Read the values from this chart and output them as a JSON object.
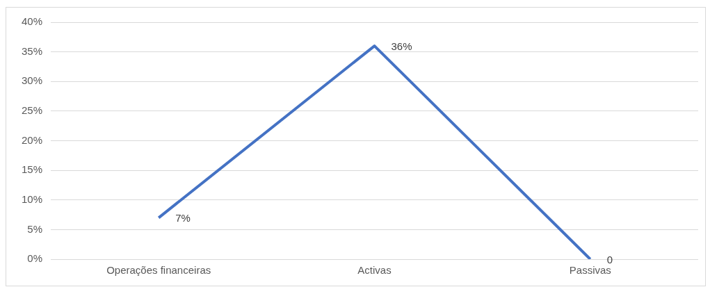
{
  "chart_data": {
    "type": "line",
    "categories": [
      "Operações financeiras",
      "Activas",
      "Passivas"
    ],
    "series": [
      {
        "color": "#4472c4",
        "values": [
          7,
          36,
          0
        ],
        "value_labels": [
          "7%",
          "36%",
          "0"
        ]
      }
    ],
    "ylim": [
      0,
      40
    ],
    "yticks": [
      {
        "value": 0,
        "label": "0%"
      },
      {
        "value": 5,
        "label": "5%"
      },
      {
        "value": 10,
        "label": "10%"
      },
      {
        "value": 15,
        "label": "15%"
      },
      {
        "value": 20,
        "label": "20%"
      },
      {
        "value": 25,
        "label": "25%"
      },
      {
        "value": 30,
        "label": "30%"
      },
      {
        "value": 35,
        "label": "35%"
      },
      {
        "value": 40,
        "label": "40%"
      }
    ],
    "grid": "y",
    "marker": "none",
    "line_style": "solid",
    "legend": false
  }
}
